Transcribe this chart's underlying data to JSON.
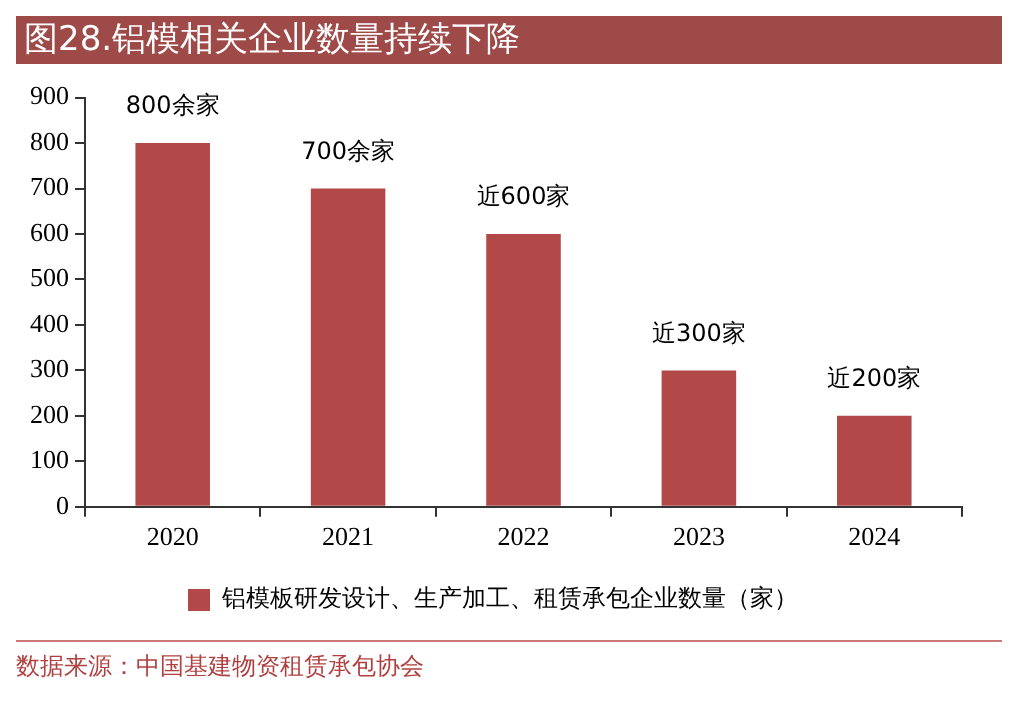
{
  "chart_data": {
    "type": "bar",
    "title": "图28.铝模相关企业数量持续下降",
    "categories": [
      "2020",
      "2021",
      "2022",
      "2023",
      "2024"
    ],
    "series": [
      {
        "name": "铝模板研发设计、生产加工、租赁承包企业数量（家）",
        "color": "#b24848",
        "values": [
          800,
          700,
          600,
          300,
          200
        ],
        "value_labels": [
          "800余家",
          "700余家",
          "近600家",
          "近300家",
          "近200家"
        ]
      }
    ],
    "ylim": [
      0,
      900
    ],
    "yticks": [
      0,
      100,
      200,
      300,
      400,
      500,
      600,
      700,
      800,
      900
    ],
    "grid": false,
    "legend": "bottom",
    "annotations": [
      "数据来源：中国基建物资租赁承包协会"
    ]
  }
}
